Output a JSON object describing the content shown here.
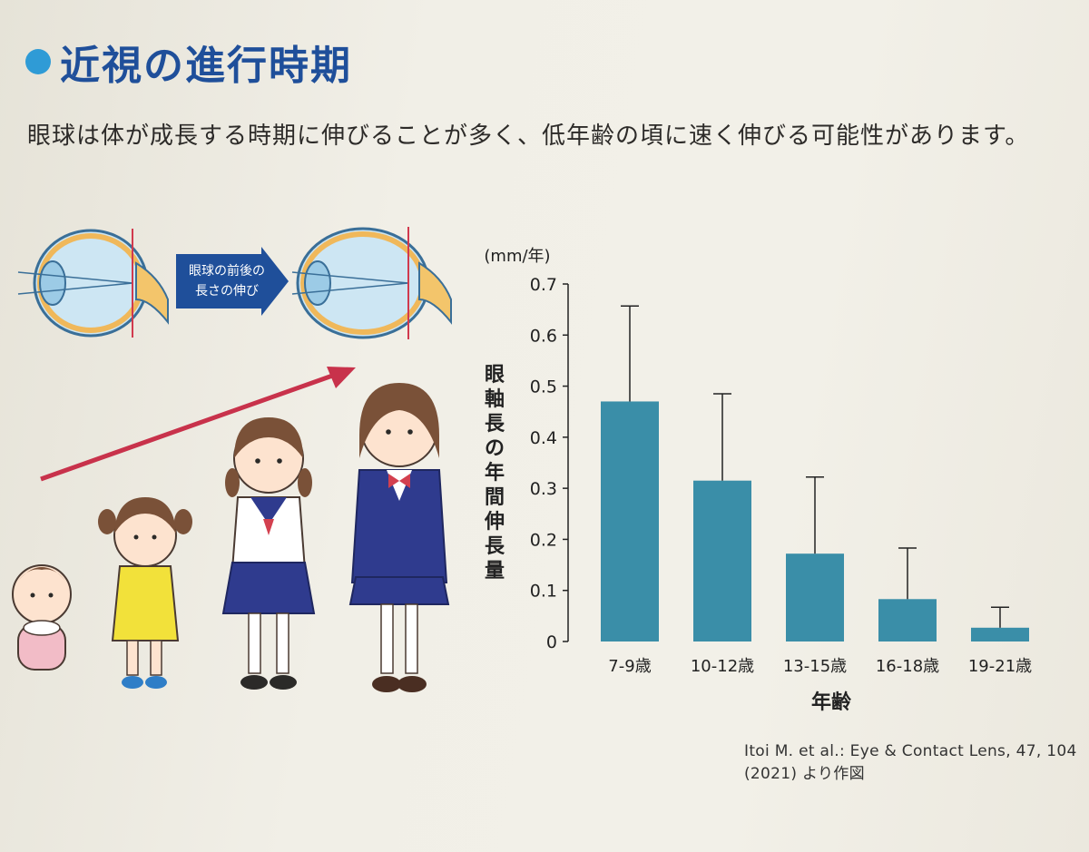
{
  "title": "近視の進行時期",
  "lead_text": "眼球は体が成長する時期に伸びることが多く、低年齢の頃に速く伸びる可能性があります。",
  "eye_arrow_label_line1": "眼球の前後の",
  "eye_arrow_label_line2": "長さの伸び",
  "source": "Itoi M. et al.: Eye & Contact Lens, 47, 104 (2021) より作図",
  "colors": {
    "title": "#1f4f9a",
    "bullet": "#2f9bd6",
    "bar": "#3a8ea8",
    "trend_arrow": "#c8324b",
    "eye_arrow": "#1f4f9a"
  },
  "icons": [
    "eye-before-icon",
    "eye-after-icon",
    "growth-arrow-icon",
    "baby-icon",
    "toddler-icon",
    "schoolgirl-icon",
    "student-icon"
  ],
  "chart_data": {
    "type": "bar",
    "unit_label": "(mm/年)",
    "ylabel": "眼軸長の年間伸長量",
    "xlabel": "年齢",
    "categories": [
      "7-9歳",
      "10-12歳",
      "13-15歳",
      "16-18歳",
      "19-21歳"
    ],
    "values": [
      0.47,
      0.315,
      0.172,
      0.083,
      0.027
    ],
    "error_upper": [
      0.657,
      0.485,
      0.322,
      0.183,
      0.067
    ],
    "ylim": [
      0,
      0.7
    ],
    "yticks": [
      "0",
      "0.1",
      "0.2",
      "0.3",
      "0.4",
      "0.5",
      "0.6",
      "0.7"
    ],
    "grid": false,
    "legend": "none"
  }
}
